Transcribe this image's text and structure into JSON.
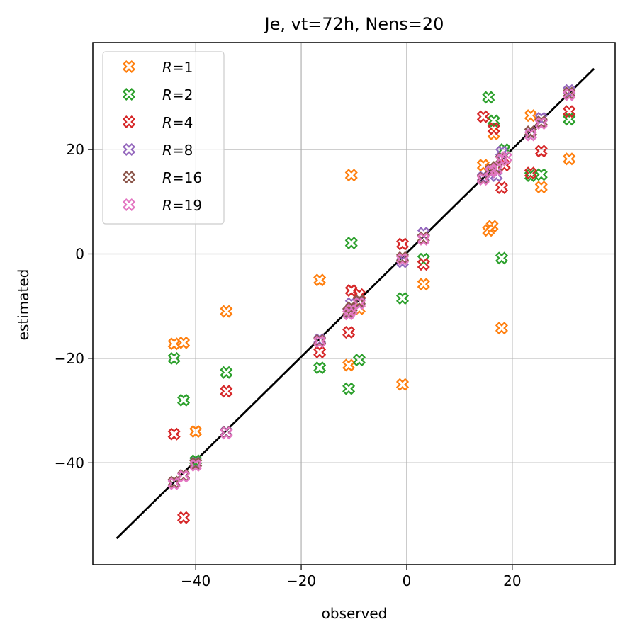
{
  "chart_data": {
    "type": "scatter",
    "title": "Je, vt=72h, Nens=20",
    "xlabel": "observed",
    "ylabel": "estimated",
    "xlim": [
      -59.5,
      39.5
    ],
    "ylim": [
      -59.5,
      40.5
    ],
    "xticks": [
      -40,
      -20,
      0,
      20
    ],
    "yticks": [
      -40,
      -20,
      0,
      20
    ],
    "xtick_labels": [
      "−40",
      "−20",
      "0",
      "20"
    ],
    "ytick_labels": [
      "−40",
      "−20",
      "0",
      "20"
    ],
    "grid": true,
    "legend_position": "upper left",
    "reference_line": {
      "x": [
        -55,
        35.5
      ],
      "y": [
        -54.5,
        35.5
      ],
      "color": "#000000"
    },
    "series": [
      {
        "name": "R=1",
        "color": "#ff7f0e",
        "points": [
          [
            -44.1,
            -17.2
          ],
          [
            -42.3,
            -17.0
          ],
          [
            -40.0,
            -34.0
          ],
          [
            -34.2,
            -11.0
          ],
          [
            -16.5,
            -5.0
          ],
          [
            -10.5,
            15.1
          ],
          [
            -11.0,
            -21.3
          ],
          [
            -9.0,
            -10.5
          ],
          [
            -0.8,
            -25.0
          ],
          [
            3.2,
            -5.8
          ],
          [
            14.5,
            17.0
          ],
          [
            15.5,
            4.5
          ],
          [
            16.2,
            5.3
          ],
          [
            16.5,
            23.0
          ],
          [
            18.0,
            -14.2
          ],
          [
            23.5,
            26.5
          ],
          [
            25.5,
            12.8
          ],
          [
            30.8,
            18.2
          ]
        ]
      },
      {
        "name": "R=2",
        "color": "#2ca02c",
        "points": [
          [
            -44.1,
            -20.0
          ],
          [
            -42.3,
            -28.0
          ],
          [
            -40.0,
            -39.6
          ],
          [
            -34.2,
            -22.7
          ],
          [
            -16.5,
            -21.8
          ],
          [
            -10.5,
            2.1
          ],
          [
            -11.0,
            -25.8
          ],
          [
            -9.0,
            -20.3
          ],
          [
            -0.8,
            -8.5
          ],
          [
            3.2,
            -1.0
          ],
          [
            15.5,
            30.0
          ],
          [
            16.5,
            25.5
          ],
          [
            18.0,
            -0.8
          ],
          [
            18.5,
            20.0
          ],
          [
            23.5,
            15.0
          ],
          [
            25.5,
            15.2
          ],
          [
            30.8,
            25.8
          ]
        ]
      },
      {
        "name": "R=4",
        "color": "#d62728",
        "points": [
          [
            -44.1,
            -34.5
          ],
          [
            -42.3,
            -50.5
          ],
          [
            -34.2,
            -26.3
          ],
          [
            -16.5,
            -18.8
          ],
          [
            -11.0,
            -15.0
          ],
          [
            -10.5,
            -7.0
          ],
          [
            -9.0,
            -7.8
          ],
          [
            -0.8,
            1.9
          ],
          [
            3.2,
            -2.0
          ],
          [
            14.5,
            26.3
          ],
          [
            16.5,
            24.0
          ],
          [
            18.0,
            12.7
          ],
          [
            18.5,
            17.0
          ],
          [
            23.5,
            15.5
          ],
          [
            25.5,
            19.7
          ],
          [
            30.8,
            27.3
          ]
        ]
      },
      {
        "name": "R=8",
        "color": "#9467bd",
        "points": [
          [
            -44.1,
            -43.8
          ],
          [
            -42.3,
            -42.5
          ],
          [
            -40.0,
            -40.0
          ],
          [
            -34.2,
            -34.1
          ],
          [
            -16.5,
            -16.4
          ],
          [
            -11.0,
            -11.1
          ],
          [
            -10.5,
            -9.5
          ],
          [
            -9.0,
            -9.1
          ],
          [
            -0.8,
            -1.5
          ],
          [
            3.2,
            4.0
          ],
          [
            14.5,
            14.7
          ],
          [
            16.0,
            15.7
          ],
          [
            17.0,
            15.0
          ],
          [
            18.0,
            19.5
          ],
          [
            23.5,
            23.3
          ],
          [
            25.5,
            26.0
          ],
          [
            30.8,
            31.3
          ]
        ]
      },
      {
        "name": "R=16",
        "color": "#8c564b",
        "points": [
          [
            -44.1,
            -43.7
          ],
          [
            -42.3,
            -42.4
          ],
          [
            -40.0,
            -40.1
          ],
          [
            -34.2,
            -34.2
          ],
          [
            -16.5,
            -16.6
          ],
          [
            -11.0,
            -11.0
          ],
          [
            -10.5,
            -10.3
          ],
          [
            -9.0,
            -9.0
          ],
          [
            -0.8,
            -0.7
          ],
          [
            3.2,
            3.1
          ],
          [
            14.5,
            14.5
          ],
          [
            16.0,
            16.1
          ],
          [
            17.0,
            16.6
          ],
          [
            18.0,
            18.2
          ],
          [
            23.5,
            23.4
          ],
          [
            25.5,
            25.3
          ],
          [
            30.8,
            30.8
          ]
        ]
      },
      {
        "name": "R=19",
        "color": "#e377c2",
        "points": [
          [
            -44.1,
            -44.0
          ],
          [
            -42.3,
            -42.6
          ],
          [
            -40.0,
            -40.5
          ],
          [
            -34.2,
            -34.3
          ],
          [
            -16.5,
            -16.8
          ],
          [
            -11.0,
            -11.5
          ],
          [
            -10.5,
            -10.8
          ],
          [
            -9.0,
            -9.5
          ],
          [
            -0.8,
            -1.0
          ],
          [
            3.2,
            2.8
          ],
          [
            14.5,
            14.3
          ],
          [
            16.0,
            15.8
          ],
          [
            17.0,
            16.2
          ],
          [
            18.0,
            18.0
          ],
          [
            18.8,
            18.5
          ],
          [
            23.5,
            22.8
          ],
          [
            25.5,
            25.0
          ],
          [
            30.8,
            30.5
          ]
        ]
      }
    ]
  }
}
